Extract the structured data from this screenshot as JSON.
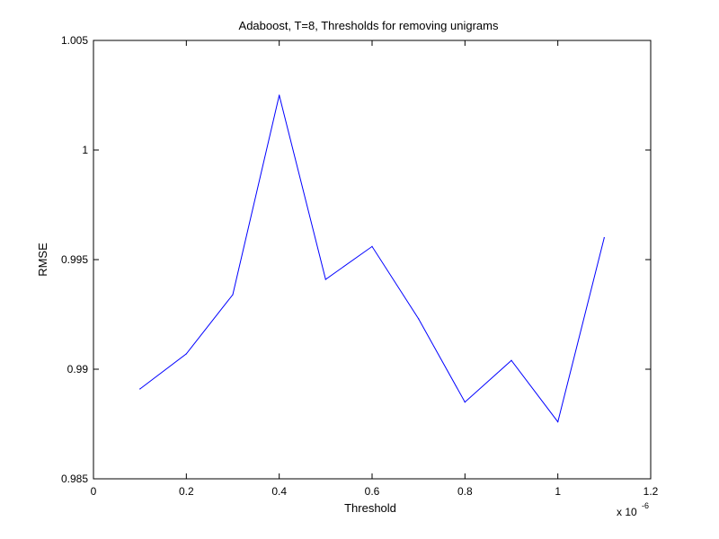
{
  "chart_data": {
    "type": "line",
    "title": "Adaboost, T=8, Thresholds for removing unigrams",
    "xlabel": "Threshold",
    "ylabel": "RMSE",
    "x_multiplier_base": "x 10",
    "x_multiplier_exponent": "-6",
    "xlim": [
      0,
      1.2
    ],
    "ylim": [
      0.985,
      1.005
    ],
    "xticks": [
      0,
      0.2,
      0.4,
      0.6,
      0.8,
      1,
      1.2
    ],
    "xtick_labels": [
      "0",
      "0.2",
      "0.4",
      "0.6",
      "0.8",
      "1",
      "1.2"
    ],
    "yticks": [
      0.985,
      0.99,
      0.995,
      1,
      1.005
    ],
    "ytick_labels": [
      "0.985",
      "0.99",
      "0.995",
      "1",
      "1.005"
    ],
    "grid": false,
    "series": [
      {
        "color": "#0000ff",
        "x": [
          0.1,
          0.2,
          0.3,
          0.4,
          0.5,
          0.6,
          0.7,
          0.8,
          0.9,
          1.0,
          1.1
        ],
        "y": [
          0.9891,
          0.9907,
          0.9934,
          1.0025,
          0.9941,
          0.9956,
          0.9923,
          0.9885,
          0.9904,
          0.9876,
          0.996
        ]
      }
    ]
  }
}
